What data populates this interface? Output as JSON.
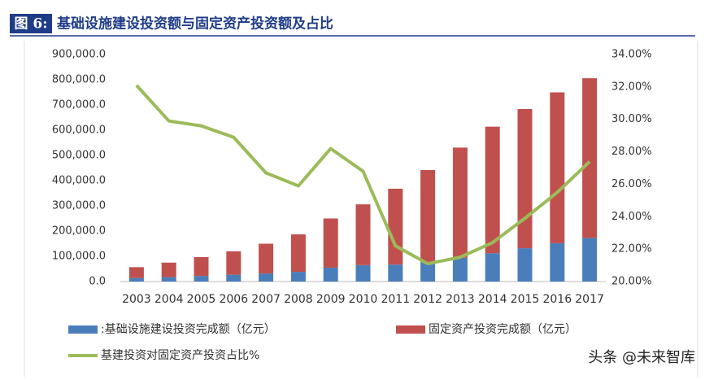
{
  "chart_data": {
    "type": "bar",
    "figure_label": "图 6:",
    "title": "基础设施建设投资额与固定资产投资额及占比",
    "categories": [
      "2003",
      "2004",
      "2005",
      "2006",
      "2007",
      "2008",
      "2009",
      "2010",
      "2011",
      "2012",
      "2013",
      "2014",
      "2015",
      "2016",
      "2017"
    ],
    "stacked": true,
    "series": [
      {
        "name": ":基础设施建设投资完成额（亿元）",
        "color": "#4a7ebb",
        "values": [
          14000,
          17300,
          22200,
          27000,
          32000,
          38500,
          55000,
          65000,
          67000,
          77000,
          94000,
          112000,
          132000,
          152000,
          173000
        ]
      },
      {
        "name": "固定资产投资完成额（亿元）",
        "color": "#c0504d",
        "values": [
          43000,
          57700,
          74800,
          93000,
          118000,
          148500,
          195000,
          241000,
          301000,
          365000,
          437000,
          502000,
          552000,
          598000,
          633000
        ]
      },
      {
        "name": "基建投资对固定资产投资占比%",
        "color": "#9bbb59",
        "type": "line",
        "axis": "y2",
        "values": [
          32.1,
          29.9,
          29.6,
          28.9,
          26.7,
          25.9,
          28.2,
          26.8,
          22.2,
          21.1,
          21.5,
          22.4,
          23.9,
          25.5,
          27.4
        ]
      }
    ],
    "ylim": [
      0,
      900000
    ],
    "yticks": [
      {
        "value": 0,
        "label": "0.0"
      },
      {
        "value": 100000,
        "label": "100,000.0"
      },
      {
        "value": 200000,
        "label": "200,000.0"
      },
      {
        "value": 300000,
        "label": "300,000.0"
      },
      {
        "value": 400000,
        "label": "400,000.0"
      },
      {
        "value": 500000,
        "label": "500,000.0"
      },
      {
        "value": 600000,
        "label": "600,000.0"
      },
      {
        "value": 700000,
        "label": "700,000.0"
      },
      {
        "value": 800000,
        "label": "800,000.0"
      },
      {
        "value": 900000,
        "label": "900,000.0"
      }
    ],
    "y2lim": [
      20,
      34
    ],
    "y2ticks": [
      {
        "value": 20,
        "label": "20.00%"
      },
      {
        "value": 22,
        "label": "22.00%"
      },
      {
        "value": 24,
        "label": "24.00%"
      },
      {
        "value": 26,
        "label": "26.00%"
      },
      {
        "value": 28,
        "label": "28.00%"
      },
      {
        "value": 30,
        "label": "30.00%"
      },
      {
        "value": 32,
        "label": "32.00%"
      },
      {
        "value": 34,
        "label": "34.00%"
      }
    ],
    "watermark": "头条 @未来智库"
  }
}
